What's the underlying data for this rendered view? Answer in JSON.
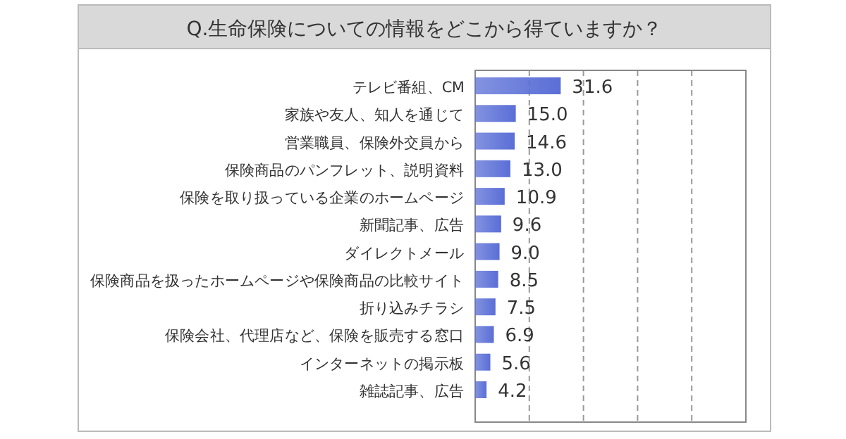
{
  "chart_data": {
    "type": "bar",
    "orientation": "horizontal",
    "title": "Q.生命保険についての情報をどこから得ていますか？",
    "categories": [
      "テレビ番組、CM",
      "家族や友人、知人を通じて",
      "営業職員、保険外交員から",
      "保険商品のパンフレット、説明資料",
      "保険を取り扱っている企業のホームページ",
      "新聞記事、広告",
      "ダイレクトメール",
      "保険商品を扱ったホームページや保険商品の比較サイト",
      "折り込みチラシ",
      "保険会社、代理店など、保険を販売する窓口",
      "インターネットの掲示板",
      "雑誌記事、広告"
    ],
    "values": [
      31.6,
      15.0,
      14.6,
      13.0,
      10.9,
      9.6,
      9.0,
      8.5,
      7.5,
      6.9,
      5.6,
      4.2
    ],
    "value_labels": [
      "31.6",
      "15.0",
      "14.6",
      "13.0",
      "10.9",
      "9.6",
      "9.0",
      "8.5",
      "7.5",
      "6.9",
      "5.6",
      "4.2"
    ],
    "color": "#5a6ed6",
    "xlim": [
      0,
      100
    ],
    "xticks": [
      {
        "value": 20,
        "label": null
      },
      {
        "value": 40,
        "label": null
      },
      {
        "value": 60,
        "label": null
      },
      {
        "value": 80,
        "label": null
      }
    ],
    "tick_labels": "y",
    "grid": "x"
  }
}
